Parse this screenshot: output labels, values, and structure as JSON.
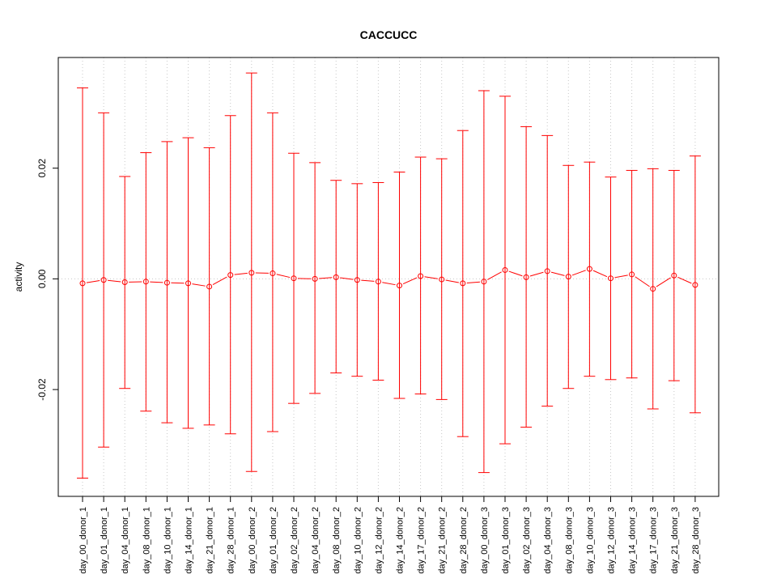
{
  "chart_data": {
    "type": "line",
    "title": "CACCUCC",
    "xlabel": "",
    "ylabel": "activity",
    "ylim": [
      -0.0393,
      0.04
    ],
    "y_ticks": [
      -0.02,
      0.0,
      0.02
    ],
    "y_tick_labels": [
      "-0.02",
      "0.00",
      "0.02"
    ],
    "grid": "vertical dotted",
    "colors": {
      "series": "#ff0000",
      "grid": "#c8c8c8",
      "axis": "#000000"
    },
    "categories": [
      "day_00_donor_1",
      "day_01_donor_1",
      "day_04_donor_1",
      "day_08_donor_1",
      "day_10_donor_1",
      "day_14_donor_1",
      "day_21_donor_1",
      "day_28_donor_1",
      "day_00_donor_2",
      "day_01_donor_2",
      "day_02_donor_2",
      "day_04_donor_2",
      "day_08_donor_2",
      "day_10_donor_2",
      "day_12_donor_2",
      "day_14_donor_2",
      "day_17_donor_2",
      "day_21_donor_2",
      "day_28_donor_2",
      "day_00_donor_3",
      "day_01_donor_3",
      "day_02_donor_3",
      "day_04_donor_3",
      "day_08_donor_3",
      "day_10_donor_3",
      "day_12_donor_3",
      "day_14_donor_3",
      "day_17_donor_3",
      "day_21_donor_3",
      "day_28_donor_3"
    ],
    "series": [
      {
        "values": [
          -0.0008,
          -0.0002,
          -0.0006,
          -0.0005,
          -0.0007,
          -0.0008,
          -0.0014,
          0.0007,
          0.0011,
          0.001,
          0.0001,
          0.0,
          0.0003,
          -0.0002,
          -0.0005,
          -0.0012,
          0.0005,
          -0.0001,
          -0.0008,
          -0.0005,
          0.0016,
          0.0003,
          0.0014,
          0.0004,
          0.0018,
          0.0001,
          0.0008,
          -0.0018,
          0.0006,
          -0.0011
        ],
        "upper": [
          0.0345,
          0.03,
          0.0185,
          0.0228,
          0.0248,
          0.0255,
          0.0237,
          0.0295,
          0.0372,
          0.03,
          0.0227,
          0.021,
          0.0178,
          0.0172,
          0.0174,
          0.0193,
          0.022,
          0.0217,
          0.0268,
          0.034,
          0.033,
          0.0275,
          0.0259,
          0.0205,
          0.0211,
          0.0184,
          0.0196,
          0.0199,
          0.0196,
          0.0222
        ],
        "lower": [
          -0.036,
          -0.0304,
          -0.0198,
          -0.0239,
          -0.026,
          -0.027,
          -0.0264,
          -0.028,
          -0.0348,
          -0.0276,
          -0.0225,
          -0.0207,
          -0.017,
          -0.0176,
          -0.0183,
          -0.0216,
          -0.0208,
          -0.0218,
          -0.0285,
          -0.035,
          -0.0298,
          -0.0268,
          -0.023,
          -0.0198,
          -0.0176,
          -0.0182,
          -0.0179,
          -0.0235,
          -0.0184,
          -0.0242
        ]
      }
    ]
  }
}
